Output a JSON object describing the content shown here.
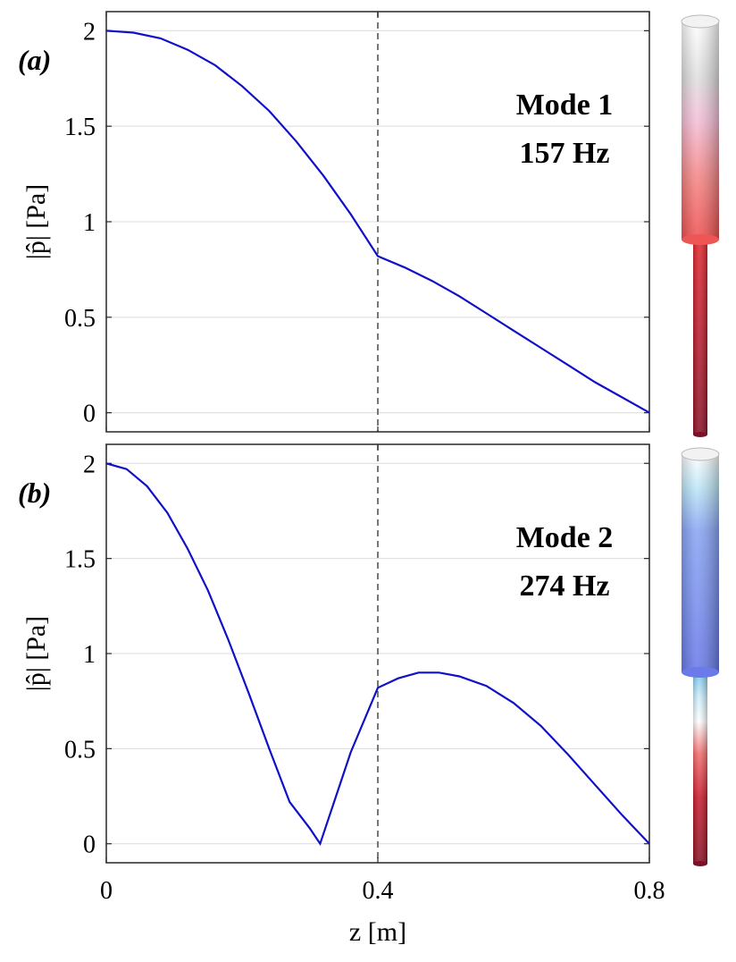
{
  "chart_data": [
    {
      "type": "line",
      "panel_label": "(a)",
      "annotation": [
        "Mode 1",
        "157 Hz"
      ],
      "xlabel": "z [m]",
      "ylabel": "|p̂| [Pa]",
      "xlim": [
        0,
        0.8
      ],
      "ylim": [
        -0.1,
        2.1
      ],
      "xticks": [
        0,
        0.4,
        0.8
      ],
      "xtick_labels": [
        "0",
        "0.4",
        "0.8"
      ],
      "yticks": [
        0,
        0.5,
        1,
        1.5,
        2
      ],
      "ytick_labels": [
        "0",
        "0.5",
        "1",
        "1.5",
        "2"
      ],
      "vertical_line_x": 0.4,
      "grid": true,
      "series": [
        {
          "name": "|p̂|",
          "x": [
            0,
            0.04,
            0.08,
            0.12,
            0.16,
            0.2,
            0.24,
            0.28,
            0.32,
            0.36,
            0.4,
            0.44,
            0.48,
            0.52,
            0.56,
            0.6,
            0.64,
            0.68,
            0.72,
            0.76,
            0.8
          ],
          "y": [
            2.0,
            1.99,
            1.96,
            1.9,
            1.82,
            1.71,
            1.58,
            1.42,
            1.24,
            1.04,
            0.82,
            0.76,
            0.69,
            0.61,
            0.52,
            0.43,
            0.34,
            0.25,
            0.16,
            0.08,
            0.0
          ]
        }
      ],
      "inset": "mode-shape-cylinder-red"
    },
    {
      "type": "line",
      "panel_label": "(b)",
      "annotation": [
        "Mode 2",
        "274 Hz"
      ],
      "xlabel": "z [m]",
      "ylabel": "|p̂| [Pa]",
      "xlim": [
        0,
        0.8
      ],
      "ylim": [
        -0.1,
        2.1
      ],
      "xticks": [
        0,
        0.4,
        0.8
      ],
      "xtick_labels": [
        "0",
        "0.4",
        "0.8"
      ],
      "yticks": [
        0,
        0.5,
        1,
        1.5,
        2
      ],
      "ytick_labels": [
        "0",
        "0.5",
        "1",
        "1.5",
        "2"
      ],
      "vertical_line_x": 0.4,
      "grid": true,
      "series": [
        {
          "name": "|p̂|",
          "x": [
            0,
            0.03,
            0.06,
            0.09,
            0.12,
            0.15,
            0.18,
            0.21,
            0.24,
            0.27,
            0.3,
            0.315,
            0.33,
            0.36,
            0.4,
            0.43,
            0.46,
            0.49,
            0.52,
            0.56,
            0.6,
            0.64,
            0.68,
            0.72,
            0.76,
            0.8
          ],
          "y": [
            2.0,
            1.97,
            1.88,
            1.74,
            1.55,
            1.33,
            1.07,
            0.79,
            0.5,
            0.22,
            0.08,
            0.0,
            0.16,
            0.48,
            0.82,
            0.87,
            0.9,
            0.9,
            0.88,
            0.83,
            0.74,
            0.62,
            0.47,
            0.31,
            0.15,
            0.0
          ]
        }
      ],
      "inset": "mode-shape-cylinder-blue-red"
    }
  ],
  "colors": {
    "curve": "#1010c8",
    "mode1_top": "#ffffff",
    "mode1_mid": "#ff6b6b",
    "mode1_bottom": "#8e1a2a",
    "mode2_top": "#ffffff",
    "mode2_blue": "#6f7ff0",
    "mode2_bottom": "#8e1a2a"
  }
}
